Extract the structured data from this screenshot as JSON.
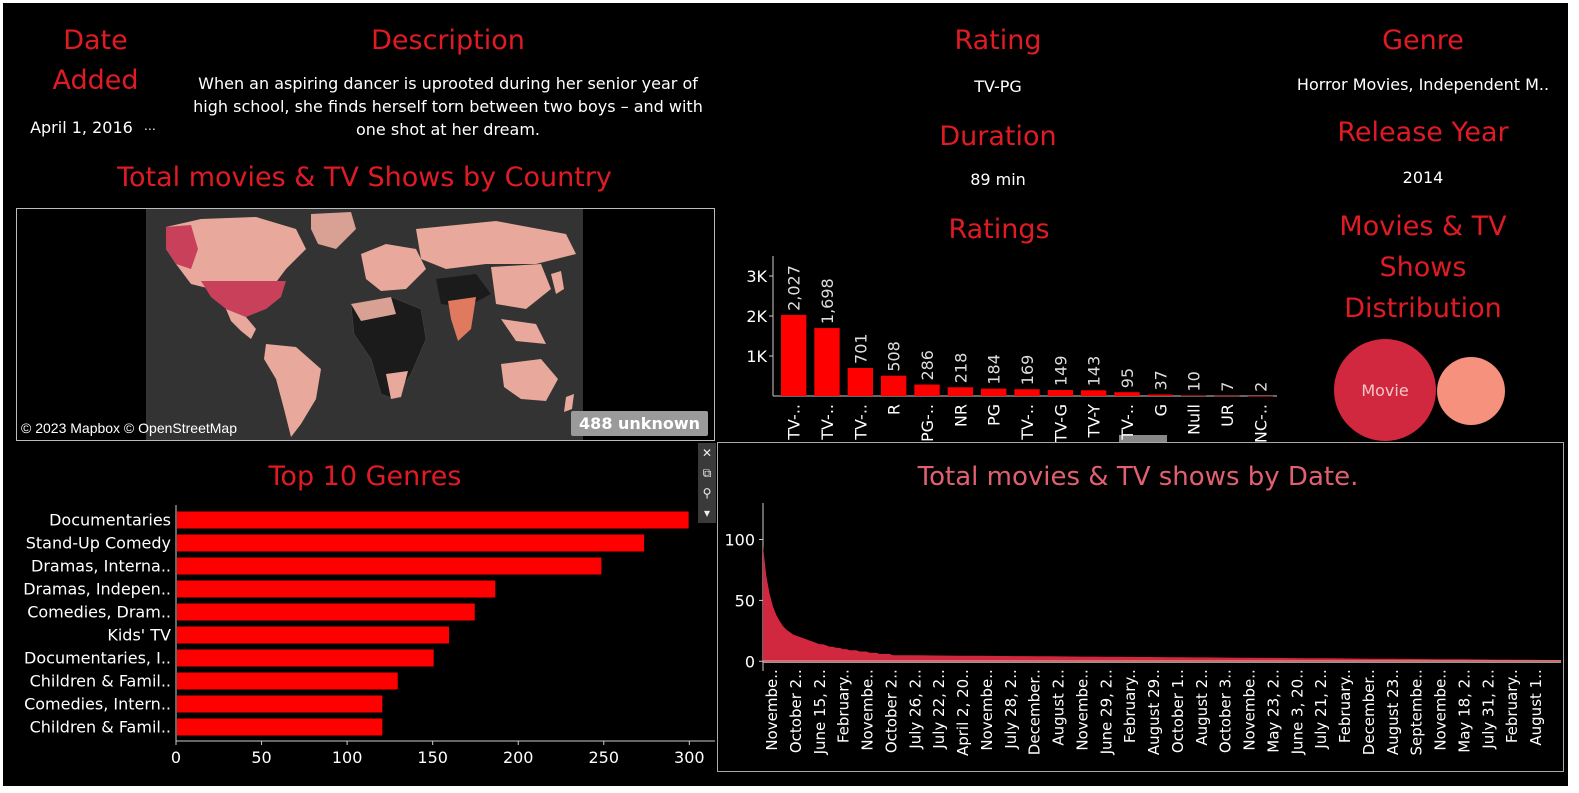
{
  "details": {
    "date_added": {
      "title": "Date Added",
      "value": "April 1, 2016",
      "more": "⋯"
    },
    "description": {
      "title": "Description",
      "value": "When an aspiring dancer is uprooted during her senior year of high school, she finds herself torn between two boys – and with one shot at her dream."
    },
    "rating": {
      "title": "Rating",
      "value": "TV-PG"
    },
    "duration": {
      "title": "Duration",
      "value": "89 min"
    },
    "genre": {
      "title": "Genre",
      "value": "Horror Movies, Independent M.."
    },
    "release_year": {
      "title": "Release Year",
      "value": "2014"
    }
  },
  "map": {
    "title": "Total movies & TV Shows by Country",
    "credit": "© 2023 Mapbox © OpenStreetMap",
    "unknown": "488 unknown"
  },
  "distribution": {
    "title": "Movies  & TV Shows Distribution",
    "label": "Movie",
    "colors": {
      "movie": "#d1273f",
      "tv": "#f5917d"
    }
  },
  "toolbar": {
    "close": "✕",
    "popout": "⧉",
    "filter": "⚲",
    "menu": "▾"
  },
  "colors": {
    "accent": "#e01b24",
    "bar": "#ff0000",
    "date_area": "#d1273f",
    "date_area_light": "#f5a89a"
  },
  "chart_data": [
    {
      "type": "bar",
      "title": "Ratings",
      "categories": [
        "TV-..",
        "TV-..",
        "TV-..",
        "R",
        "PG-..",
        "NR",
        "PG",
        "TV-..",
        "TV-G",
        "TV-Y",
        "TV-..",
        "G",
        "Null",
        "UR",
        "NC-.."
      ],
      "values": [
        2027,
        1698,
        701,
        508,
        286,
        218,
        184,
        169,
        149,
        143,
        95,
        37,
        10,
        7,
        2
      ],
      "data_labels": [
        "2,027",
        "1,698",
        "701",
        "508",
        "286",
        "218",
        "184",
        "169",
        "149",
        "143",
        "95",
        "37",
        "10",
        "7",
        "2"
      ],
      "ylim": [
        0,
        3500
      ],
      "yticks": [
        1000,
        2000,
        3000
      ],
      "ytick_labels": [
        "1K",
        "2K",
        "3K"
      ]
    },
    {
      "type": "bar",
      "orientation": "horizontal",
      "title": "Top 10 Genres",
      "categories": [
        "Documentaries",
        "Stand-Up Comedy",
        "Dramas, Interna..",
        "Dramas, Indepen..",
        "Comedies, Dram..",
        "Kids' TV",
        "Documentaries, I..",
        "Children & Famil..",
        "Comedies, Intern..",
        "Children & Famil.."
      ],
      "values": [
        299,
        273,
        248,
        186,
        174,
        159,
        150,
        129,
        120,
        120
      ],
      "xlim": [
        0,
        315
      ],
      "xticks": [
        0,
        50,
        100,
        150,
        200,
        250,
        300
      ]
    },
    {
      "type": "area",
      "title": "Total movies & TV shows by Date.",
      "ylim": [
        -8,
        130
      ],
      "yticks": [
        0,
        50,
        100
      ],
      "head_values": [
        95,
        70,
        55,
        45,
        38,
        33,
        29,
        26,
        24,
        22,
        21,
        20,
        19,
        18,
        17,
        16,
        15,
        14,
        14,
        13,
        12,
        12,
        11,
        11,
        10,
        10,
        9,
        9,
        9,
        8,
        8,
        8,
        7,
        7,
        7,
        6,
        6,
        6,
        6,
        5
      ],
      "x_tick_labels": [
        "Novembe..",
        "October 2..",
        "June 15, 2..",
        "February..",
        "Novembe..",
        "October 2..",
        "July 26, 2..",
        "July 22, 2..",
        "April 2, 20..",
        "Novembe..",
        "July 28, 2..",
        "December..",
        "August 2..",
        "Novembe..",
        "June 29, 2..",
        "February..",
        "August 29..",
        "October 1..",
        "August 2..",
        "October 3..",
        "Novembe..",
        "May 23, 2..",
        "June 3, 20..",
        "July 21, 2..",
        "February..",
        "December..",
        "August 23..",
        "Septembe..",
        "Novembe..",
        "May 18, 2..",
        "July 31, 2..",
        "February..",
        "August 1.."
      ]
    }
  ]
}
